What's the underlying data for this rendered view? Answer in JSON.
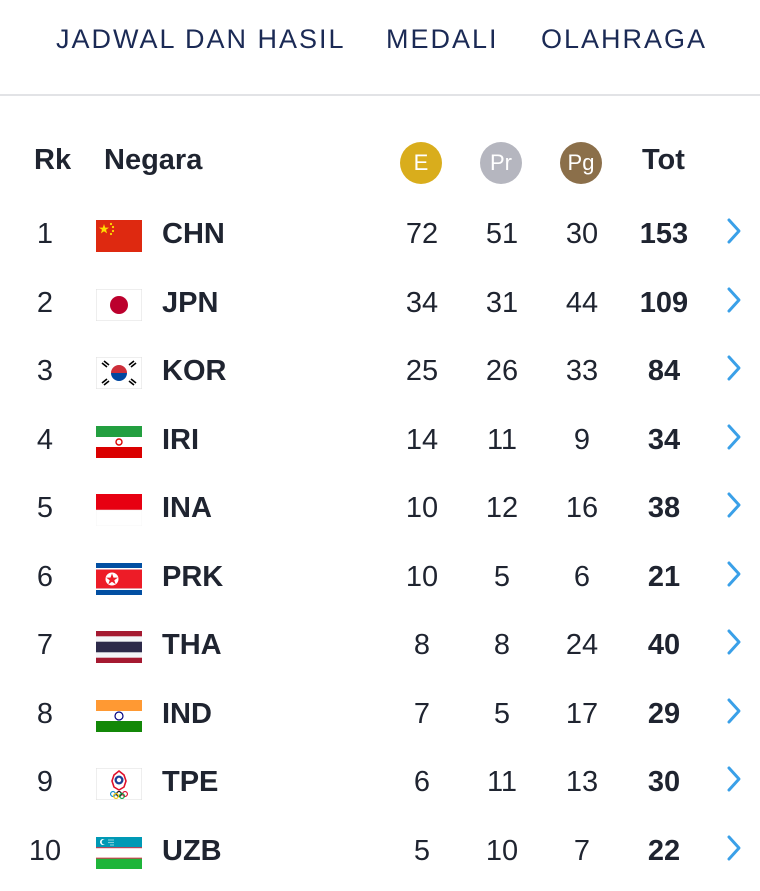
{
  "nav": {
    "items": [
      "JADWAL DAN HASIL",
      "MEDALI",
      "OLAHRAGA"
    ]
  },
  "table": {
    "headers": {
      "rank": "Rk",
      "country": "Negara",
      "gold": "E",
      "silver": "Pr",
      "bronze": "Pg",
      "total": "Tot"
    },
    "medal_colors": {
      "gold": "#d9ad1c",
      "silver": "#b5b6bf",
      "bronze": "#8b6f4a"
    },
    "chevron_color": "#3aa0e8",
    "rows": [
      {
        "rank": "1",
        "code": "CHN",
        "flag": "china-flag",
        "gold": "72",
        "silver": "51",
        "bronze": "30",
        "total": "153"
      },
      {
        "rank": "2",
        "code": "JPN",
        "flag": "japan-flag",
        "gold": "34",
        "silver": "31",
        "bronze": "44",
        "total": "109"
      },
      {
        "rank": "3",
        "code": "KOR",
        "flag": "korea-flag",
        "gold": "25",
        "silver": "26",
        "bronze": "33",
        "total": "84"
      },
      {
        "rank": "4",
        "code": "IRI",
        "flag": "iran-flag",
        "gold": "14",
        "silver": "11",
        "bronze": "9",
        "total": "34"
      },
      {
        "rank": "5",
        "code": "INA",
        "flag": "indonesia-flag",
        "gold": "10",
        "silver": "12",
        "bronze": "16",
        "total": "38"
      },
      {
        "rank": "6",
        "code": "PRK",
        "flag": "north-korea-flag",
        "gold": "10",
        "silver": "5",
        "bronze": "6",
        "total": "21"
      },
      {
        "rank": "7",
        "code": "THA",
        "flag": "thailand-flag",
        "gold": "8",
        "silver": "8",
        "bronze": "24",
        "total": "40"
      },
      {
        "rank": "8",
        "code": "IND",
        "flag": "india-flag",
        "gold": "7",
        "silver": "5",
        "bronze": "17",
        "total": "29"
      },
      {
        "rank": "9",
        "code": "TPE",
        "flag": "chinese-taipei-flag",
        "gold": "6",
        "silver": "11",
        "bronze": "13",
        "total": "30"
      },
      {
        "rank": "10",
        "code": "UZB",
        "flag": "uzbekistan-flag",
        "gold": "5",
        "silver": "10",
        "bronze": "7",
        "total": "22"
      }
    ]
  }
}
